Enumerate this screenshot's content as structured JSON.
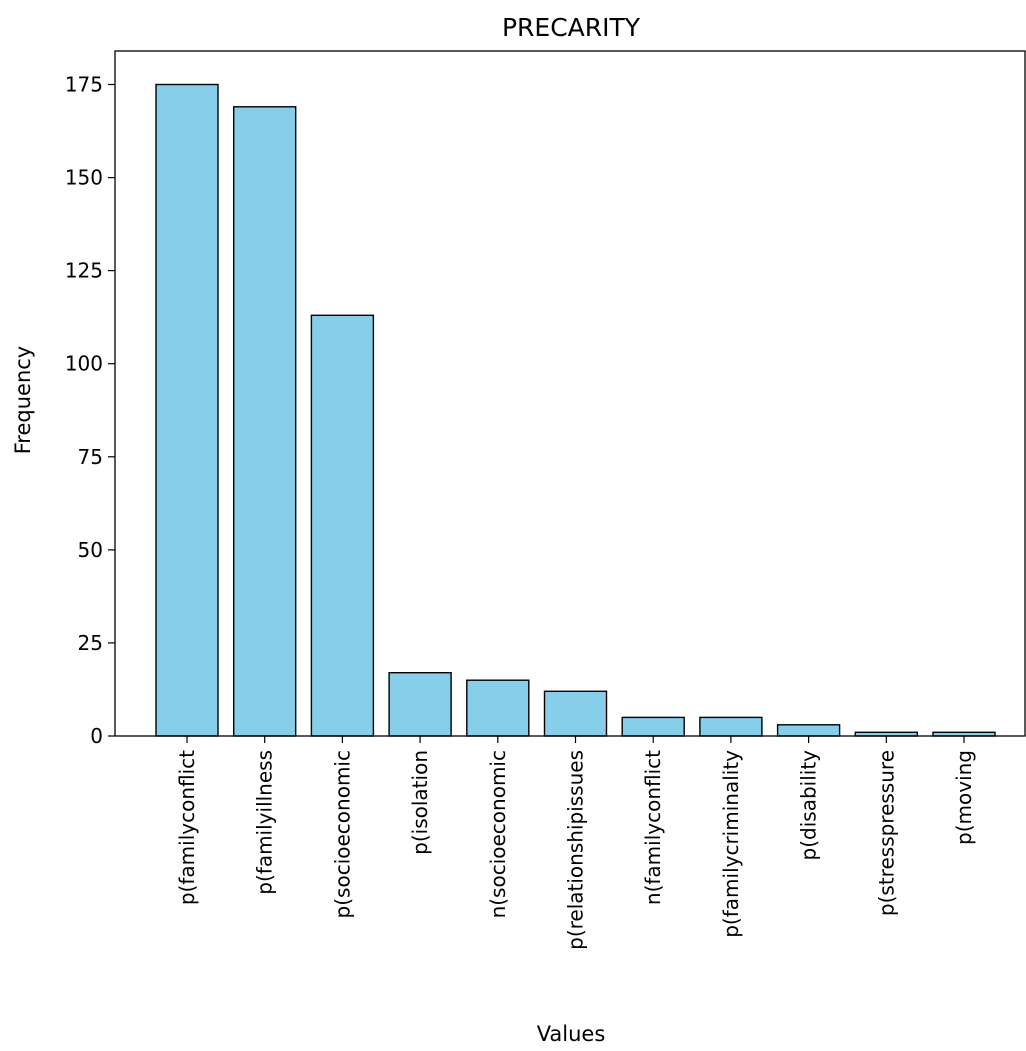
{
  "chart_data": {
    "type": "bar",
    "title": "PRECARITY",
    "xlabel": "Values",
    "ylabel": "Frequency",
    "categories": [
      "p(familyconflict",
      "p(familyillness",
      "p(socioeconomic",
      "p(isolation",
      "n(socioeconomic",
      "p(relationshipissues",
      "n(familyconflict",
      "p(familycriminality",
      "p(disability",
      "p(stresspressure",
      "p(moving"
    ],
    "values": [
      175,
      169,
      113,
      17,
      15,
      12,
      5,
      5,
      3,
      1,
      1
    ],
    "ylim": [
      0,
      184
    ],
    "yticks": [
      0,
      25,
      50,
      75,
      100,
      125,
      150,
      175
    ],
    "grid": false,
    "bar_color": "#87ceeb",
    "bar_edge_color": "#000000"
  }
}
